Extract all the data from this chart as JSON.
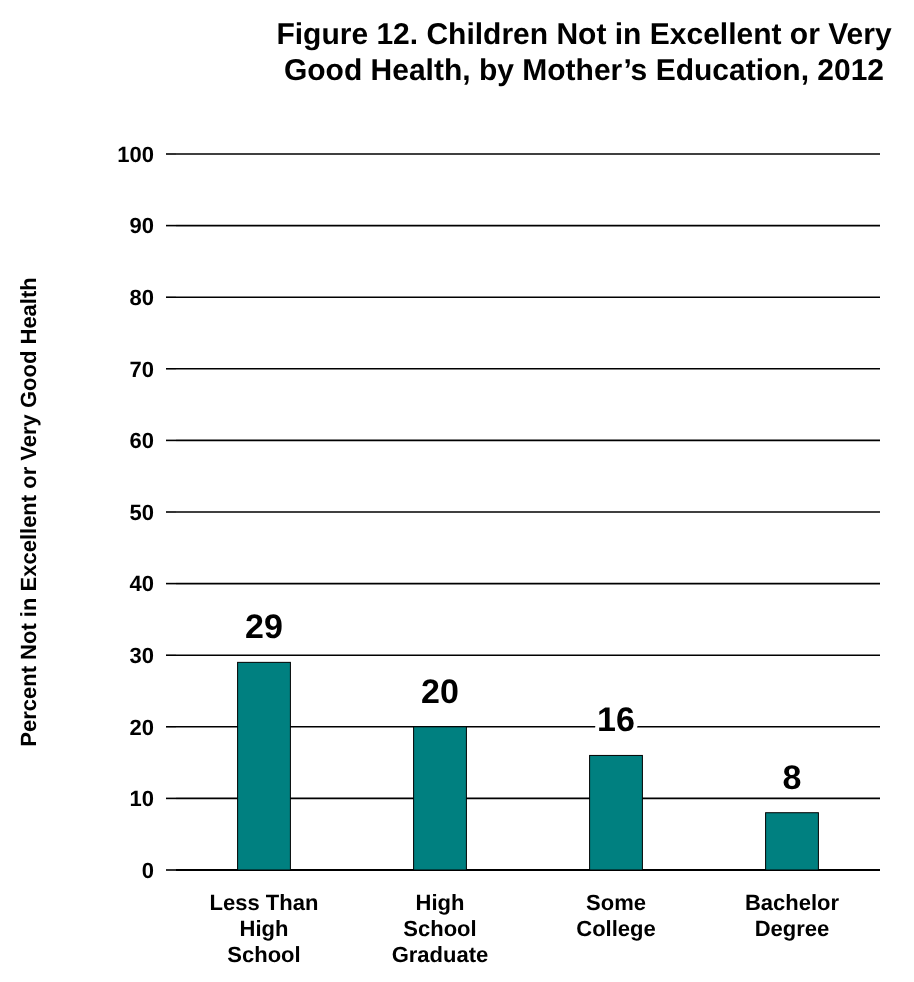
{
  "chart_data": {
    "type": "bar",
    "title": "Figure 12. Children Not in Excellent or Very Good Health, by Mother’s Education, 2012",
    "ylabel": "Percent Not in Excellent or Very Good Health",
    "categories": [
      "Less Than High School",
      "High School Graduate",
      "Some College",
      "Bachelor Degree"
    ],
    "values": [
      29,
      20,
      16,
      8
    ],
    "color": "#008080",
    "ylim": [
      0,
      100
    ],
    "yticks": [
      0,
      10,
      20,
      30,
      40,
      50,
      60,
      70,
      80,
      90,
      100
    ],
    "grid": "y",
    "data_labels": true
  }
}
